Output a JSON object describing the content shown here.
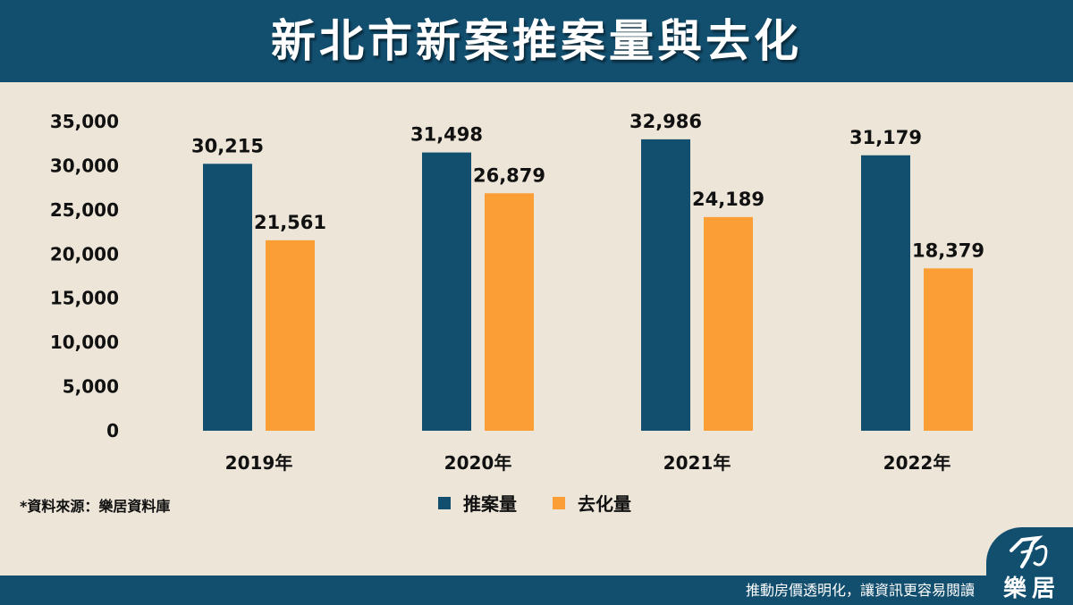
{
  "title": "新北市新案推案量與去化",
  "source_note": "*資料來源：樂居資料庫",
  "slogan": "推動房價透明化，讓資訊更容易閱讀",
  "logo_text": "樂居",
  "colors": {
    "header": "#124e6e",
    "series1": "#124e6e",
    "series2": "#fb9e36",
    "background": "#ece5d8"
  },
  "chart_data": {
    "type": "bar",
    "categories": [
      "2019年",
      "2020年",
      "2021年",
      "2022年"
    ],
    "series": [
      {
        "name": "推案量",
        "values": [
          30215,
          31498,
          32986,
          31179
        ],
        "labels": [
          "30,215",
          "31,498",
          "32,986",
          "31,179"
        ]
      },
      {
        "name": "去化量",
        "values": [
          21561,
          26879,
          24189,
          18379
        ],
        "labels": [
          "21,561",
          "26,879",
          "24,189",
          "18,379"
        ]
      }
    ],
    "yticks": [
      "0",
      "5,000",
      "10,000",
      "15,000",
      "20,000",
      "25,000",
      "30,000",
      "35,000"
    ],
    "ylim": [
      0,
      35000
    ],
    "grid": false,
    "legend": "bottom-center"
  }
}
